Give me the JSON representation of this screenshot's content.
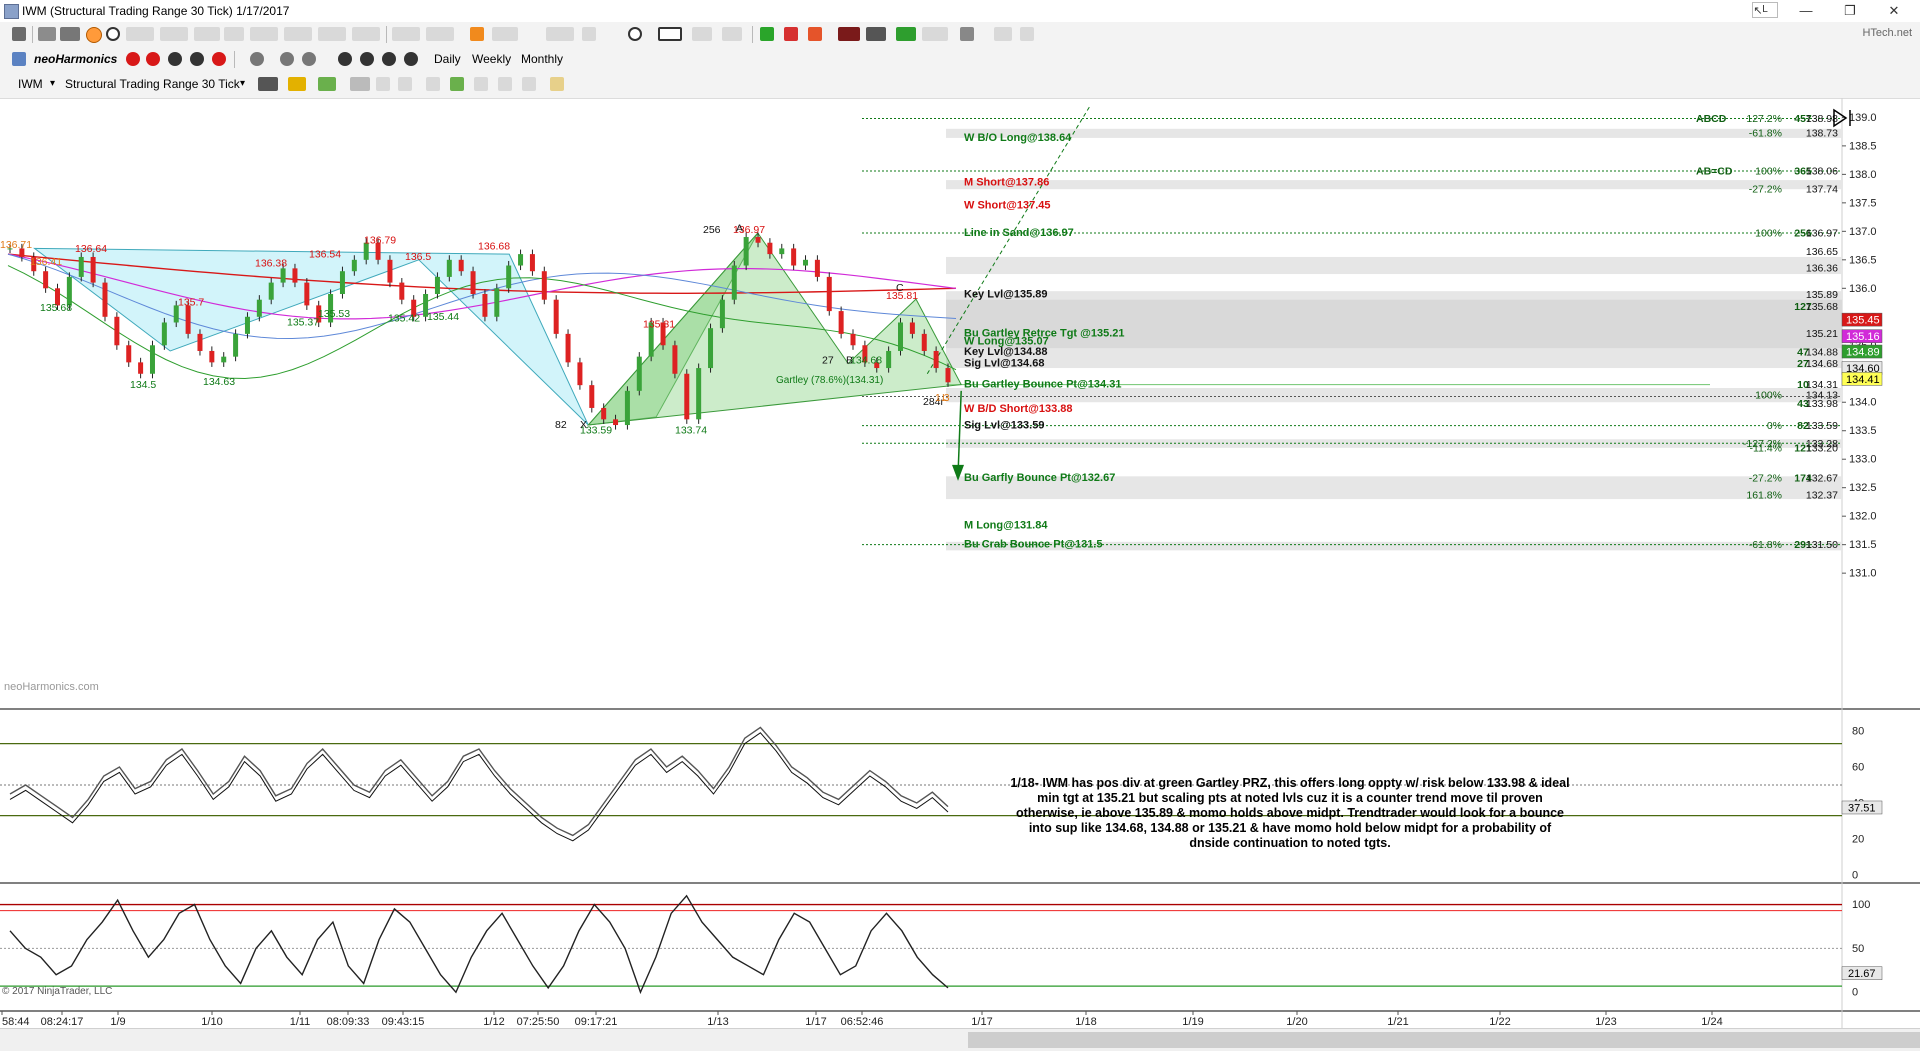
{
  "window": {
    "title": "IWM (Structural Trading Range 30 Tick)  1/17/2017",
    "login_badge": "L",
    "brand": "HTech.net"
  },
  "toolbar2": {
    "logo": "neoHarmonics",
    "daily": "Daily",
    "weekly": "Weekly",
    "monthly": "Monthly"
  },
  "toolbar3": {
    "instrument": "IWM",
    "data_series": "Structural Trading Range 30 Tick"
  },
  "watermark": "neoHarmonics.com",
  "copyright": "© 2017 NinjaTrader, LLC",
  "annotation": "1/18- IWM has pos div at green Gartley PRZ, this offers long oppty w/ risk below 133.98 & ideal min tgt at 135.21 but scaling pts at noted lvls cuz it is a counter trend move til proven otherwise, ie above 135.89 & momo holds above midpt.  Trendtrader would look for a bounce into sup like 134.68, 134.88 or 135.21 & have momo hold below midpt for a probability of dnside continuation to noted tgts.",
  "colors": {
    "red": "#d81010",
    "green": "#0f7a17",
    "dark": "#111111",
    "ema_red": "#d81818",
    "ema_blue": "#5e88d8",
    "ema_pink": "#d12bd8",
    "ema_green": "#2e9e2e",
    "pattern_cyan": "#7fe0f0",
    "pattern_green": "#8ed48a"
  },
  "chart_data": [
    {
      "type": "line",
      "role": "price (candlestick bars)",
      "yaxis": {
        "ticks": [
          131.0,
          131.5,
          132.0,
          132.5,
          133.0,
          133.5,
          134.0,
          134.5,
          135.0,
          135.5,
          136.0,
          136.5,
          137.0,
          137.5,
          138.0,
          138.5,
          139.0
        ],
        "range": [
          130.95,
          139.2
        ]
      },
      "xaxis": {
        "ticks": [
          "58:44",
          "08:24:17",
          "1/9",
          "1/10",
          "1/11",
          "08:09:33",
          "09:43:15",
          "1/12",
          "07:25:50",
          "09:17:21",
          "1/13",
          "1/17",
          "06:52:46",
          "1/17",
          "1/18",
          "1/19",
          "1/20",
          "1/21",
          "1/22",
          "1/23",
          "1/24"
        ]
      },
      "price_path": [
        136.7,
        136.55,
        136.3,
        136.0,
        135.7,
        136.2,
        136.55,
        136.1,
        135.5,
        135.0,
        134.7,
        134.5,
        135.0,
        135.4,
        135.7,
        135.2,
        134.9,
        134.7,
        134.8,
        135.2,
        135.5,
        135.8,
        136.1,
        136.35,
        136.1,
        135.7,
        135.4,
        135.9,
        136.3,
        136.5,
        136.8,
        136.5,
        136.1,
        135.8,
        135.5,
        135.9,
        136.2,
        136.5,
        136.3,
        135.9,
        135.5,
        136.0,
        136.4,
        136.6,
        136.3,
        135.8,
        135.2,
        134.7,
        134.3,
        133.9,
        133.7,
        133.6,
        134.2,
        134.8,
        135.4,
        135.0,
        134.5,
        133.7,
        134.6,
        135.3,
        135.8,
        136.4,
        136.9,
        136.8,
        136.6,
        136.7,
        136.4,
        136.5,
        136.2,
        135.6,
        135.2,
        135.0,
        134.7,
        134.6,
        134.9,
        135.4,
        135.2,
        134.9,
        134.6,
        134.35
      ],
      "swing_labels": [
        {
          "text": "136.71",
          "color": "orange"
        },
        {
          "text": "136.41",
          "color": "orange"
        },
        {
          "text": "136.64",
          "color": "red"
        },
        {
          "text": "135.68",
          "color": "green"
        },
        {
          "text": "134.5",
          "color": "green"
        },
        {
          "text": "135.7",
          "color": "red"
        },
        {
          "text": "134.63",
          "color": "green"
        },
        {
          "text": "136.38",
          "color": "red"
        },
        {
          "text": "135.37",
          "color": "green"
        },
        {
          "text": "136.54",
          "color": "red"
        },
        {
          "text": "135.53",
          "color": "green"
        },
        {
          "text": "136.79",
          "color": "red"
        },
        {
          "text": "136.5",
          "color": "red"
        },
        {
          "text": "135.42",
          "color": "green"
        },
        {
          "text": "135.44",
          "color": "green"
        },
        {
          "text": "136.68",
          "color": "red"
        },
        {
          "text": "135.31",
          "color": "red"
        },
        {
          "text": "133.59",
          "color": "green"
        },
        {
          "text": "133.74",
          "color": "green"
        },
        {
          "text": "136.97",
          "color": "red"
        },
        {
          "text": "135.81",
          "color": "red"
        },
        {
          "text": "134.68",
          "color": "green"
        },
        {
          "text": "82",
          "color": "dark"
        },
        {
          "text": "X",
          "color": "dark"
        },
        {
          "text": "256",
          "color": "dark"
        },
        {
          "text": "A",
          "color": "dark"
        },
        {
          "text": "27",
          "color": "dark"
        },
        {
          "text": "B",
          "color": "dark"
        },
        {
          "text": "C",
          "color": "dark"
        },
        {
          "text": "Gartley (78.6%)(134.31)",
          "color": "green"
        },
        {
          "text": "284r",
          "color": "dark"
        },
        {
          "text": "1.3",
          "color": "orange"
        },
        {
          "text": "L",
          "color": "orange"
        }
      ],
      "levels": [
        {
          "label": "W B/O Long@138.64",
          "value": 138.64,
          "color": "green"
        },
        {
          "label": "M Short@137.86",
          "value": 137.86,
          "color": "red"
        },
        {
          "label": "W Short@137.45",
          "value": 137.45,
          "color": "red"
        },
        {
          "label": "Line in Sand@136.97",
          "value": 136.97,
          "color": "green"
        },
        {
          "label": "Key Lvl@135.89",
          "value": 135.89,
          "color": "dark"
        },
        {
          "label": "Bu Gartley Retrce Tgt @135.21",
          "value": 135.21,
          "color": "green"
        },
        {
          "label": "W Long@135.07",
          "value": 135.07,
          "color": "green"
        },
        {
          "label": "Key Lvl@134.88",
          "value": 134.88,
          "color": "dark"
        },
        {
          "label": "Sig Lvl@134.68",
          "value": 134.68,
          "color": "dark"
        },
        {
          "label": "Bu Gartley Bounce Pt@134.31",
          "value": 134.31,
          "color": "green"
        },
        {
          "label": "W B/D Short@133.88",
          "value": 133.88,
          "color": "red"
        },
        {
          "label": "Sig Lvl@133.59",
          "value": 133.59,
          "color": "dark"
        },
        {
          "label": "Bu Garfly Bounce Pt@132.67",
          "value": 132.67,
          "color": "green"
        },
        {
          "label": "M Long@131.84",
          "value": 131.84,
          "color": "green"
        },
        {
          "label": "Bu Crab Bounce Pt@131.5",
          "value": 131.5,
          "color": "green"
        }
      ],
      "fib_rows": [
        {
          "name": "ABCD",
          "pct": "127.2%",
          "num": "457",
          "val": "138.98",
          "y": 138.98
        },
        {
          "name": "",
          "pct": "-61.8%",
          "num": "",
          "val": "138.73",
          "y": 138.73
        },
        {
          "name": "AB=CD",
          "pct": "100%",
          "num": "365",
          "val": "138.06",
          "y": 138.06
        },
        {
          "name": "",
          "pct": "-27.2%",
          "num": "",
          "val": "137.74",
          "y": 137.74
        },
        {
          "name": "",
          "pct": "100%",
          "num": "256",
          "val": "136.97",
          "y": 136.97
        },
        {
          "name": "",
          "pct": "",
          "num": "",
          "val": "136.65",
          "y": 136.65
        },
        {
          "name": "",
          "pct": "",
          "num": "",
          "val": "136.36",
          "y": 136.36
        },
        {
          "name": "",
          "pct": "",
          "num": "",
          "val": "135.89",
          "y": 135.89
        },
        {
          "name": "",
          "pct": "",
          "num": "127",
          "val": "135.68",
          "y": 135.68
        },
        {
          "name": "",
          "pct": "",
          "num": "",
          "val": "135.21",
          "y": 135.21
        },
        {
          "name": "",
          "pct": "",
          "num": "47",
          "val": "134.88",
          "y": 134.88
        },
        {
          "name": "",
          "pct": "",
          "num": "27",
          "val": "134.68",
          "y": 134.68
        },
        {
          "name": "",
          "pct": "",
          "num": "10",
          "val": "134.31",
          "y": 134.31
        },
        {
          "name": "",
          "pct": "100%",
          "num": "",
          "val": "134.13",
          "y": 134.13
        },
        {
          "name": "",
          "pct": "",
          "num": "43",
          "val": "133.98",
          "y": 133.98
        },
        {
          "name": "",
          "pct": "0%",
          "num": "82",
          "val": "133.59",
          "y": 133.59
        },
        {
          "name": "",
          "pct": "-127.2%",
          "num": "",
          "val": "133.28",
          "y": 133.28
        },
        {
          "name": "",
          "pct": "-11.4%",
          "num": "121",
          "val": "133.20",
          "y": 133.2
        },
        {
          "name": "",
          "pct": "-27.2%",
          "num": "174",
          "val": "132.67",
          "y": 132.67
        },
        {
          "name": "",
          "pct": "161.8%",
          "num": "",
          "val": "132.37",
          "y": 132.37
        },
        {
          "name": "",
          "pct": "-61.8%",
          "num": "291",
          "val": "131.50",
          "y": 131.5
        }
      ],
      "price_badges": [
        {
          "value": "135.45",
          "bg": "#d81818",
          "fg": "#ffffff"
        },
        {
          "value": "135.16",
          "bg": "#d12bd8",
          "fg": "#ffffff"
        },
        {
          "value": "134.89",
          "bg": "#2e9e2e",
          "fg": "#ffffff"
        },
        {
          "value": "134.60",
          "bg": "#e8e8e8",
          "fg": "#000000"
        },
        {
          "value": "134.41",
          "bg": "#ffff55",
          "fg": "#000000"
        }
      ]
    },
    {
      "type": "line",
      "role": "momentum oscillator 1",
      "yaxis": {
        "ticks": [
          0,
          20,
          40,
          60,
          80
        ],
        "range": [
          0,
          90
        ]
      },
      "midline": 50,
      "upper_band": 73,
      "lower_band": 33,
      "last_value": "37.51",
      "values": [
        45,
        50,
        44,
        38,
        32,
        42,
        55,
        60,
        48,
        52,
        64,
        70,
        58,
        45,
        52,
        66,
        58,
        44,
        48,
        62,
        70,
        60,
        50,
        46,
        58,
        64,
        54,
        44,
        52,
        66,
        70,
        58,
        48,
        40,
        32,
        26,
        22,
        28,
        40,
        52,
        64,
        70,
        60,
        66,
        58,
        48,
        60,
        76,
        82,
        72,
        60,
        54,
        46,
        42,
        50,
        58,
        52,
        44,
        40,
        46,
        38
      ]
    },
    {
      "type": "line",
      "role": "momentum oscillator 2",
      "yaxis": {
        "ticks": [
          0,
          50,
          100
        ],
        "range": [
          -10,
          120
        ]
      },
      "upper_band": 100,
      "upper_band2": 93,
      "lower_band": 7,
      "midline": 50,
      "last_value": "21.67",
      "values": [
        70,
        50,
        40,
        20,
        30,
        60,
        80,
        105,
        70,
        40,
        60,
        90,
        100,
        60,
        30,
        10,
        50,
        70,
        40,
        20,
        60,
        80,
        30,
        10,
        60,
        95,
        80,
        50,
        20,
        0,
        40,
        70,
        90,
        60,
        30,
        5,
        30,
        70,
        100,
        80,
        50,
        0,
        40,
        90,
        110,
        80,
        60,
        40,
        30,
        20,
        60,
        90,
        80,
        50,
        20,
        30,
        70,
        90,
        70,
        40,
        20,
        5
      ]
    }
  ]
}
